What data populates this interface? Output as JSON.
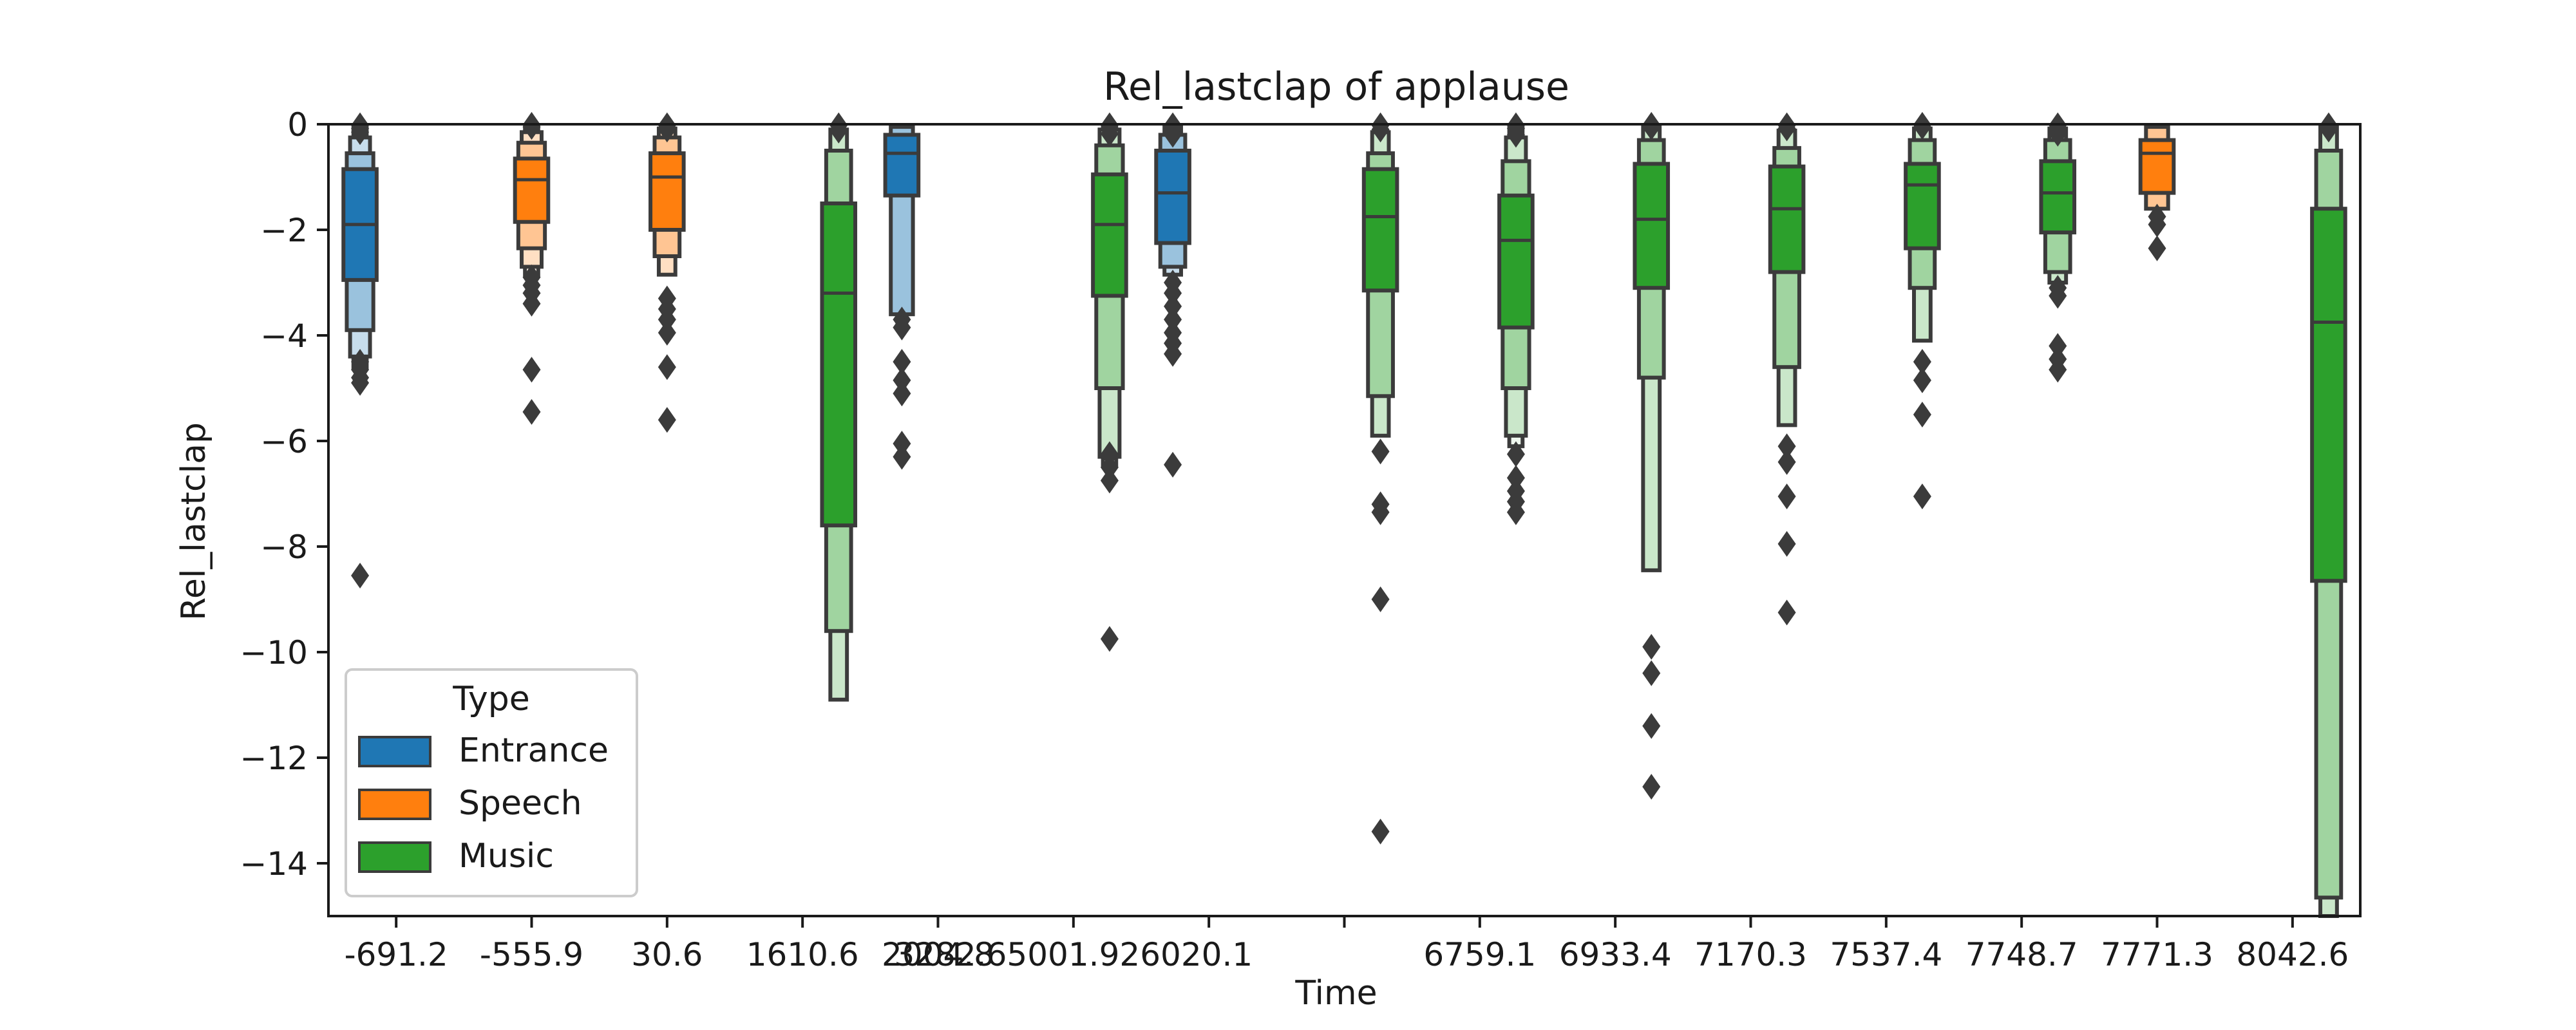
{
  "chart_data": {
    "type": "boxen",
    "title": "Rel_lastclap of applause",
    "xlabel": "Time",
    "ylabel": "Rel_lastclap",
    "ylim": [
      -15,
      0
    ],
    "yticks": [
      0,
      -2,
      -4,
      -6,
      -8,
      -10,
      -12,
      -14
    ],
    "ytick_labels": [
      "0",
      "−2",
      "−4",
      "−6",
      "−8",
      "−10",
      "−12",
      "−14"
    ],
    "categories": [
      "-691.2",
      "-555.9",
      "30.6",
      "1610.6",
      "2004.8",
      "3282.6",
      "5001.9",
      "26020.1",
      "6759.1",
      "6933.4",
      "7170.3",
      "7537.4",
      "7748.7",
      "7771.3",
      "8042.6"
    ],
    "tick_labels": [
      "-691.2",
      "-555.9",
      "30.6",
      "1610.6",
      "2004.8",
      "3282.65001.926020.1",
      "",
      "",
      "6759.1",
      "6933.4",
      "7170.3",
      "7537.4",
      "7748.7",
      "7771.3",
      "8042.6"
    ],
    "hue_order": [
      "Entrance",
      "Speech",
      "Music"
    ],
    "colors": {
      "Entrance": "#1f77b4",
      "Speech": "#ff7f0e",
      "Music": "#2ca02c",
      "edge": "#3b3b3b"
    },
    "legend": {
      "title": "Type",
      "placement": "lower-left",
      "entries": [
        {
          "label": "Entrance",
          "color": "#1f77b4"
        },
        {
          "label": "Speech",
          "color": "#ff7f0e"
        },
        {
          "label": "Music",
          "color": "#2ca02c"
        }
      ]
    },
    "groups": [
      {
        "category": "-691.2",
        "type": "Entrance",
        "median": -1.9,
        "boxes": [
          [
            -0.85,
            -2.95
          ],
          [
            -0.55,
            -3.9
          ],
          [
            -0.25,
            -4.4
          ],
          [
            -0.05,
            -4.6
          ]
        ],
        "outliers": [
          -4.5,
          -4.65,
          -4.8,
          -4.9,
          -8.55
        ],
        "top_outliers": [
          -0.02,
          -0.08,
          -0.15
        ]
      },
      {
        "category": "-555.9",
        "type": "Speech",
        "median": -1.05,
        "boxes": [
          [
            -0.65,
            -1.85
          ],
          [
            -0.35,
            -2.35
          ],
          [
            -0.15,
            -2.7
          ],
          [
            -0.03,
            -2.85
          ]
        ],
        "outliers": [
          -2.9,
          -3.05,
          -3.2,
          -3.4,
          -4.65,
          -5.45
        ],
        "top_outliers": [
          -0.01,
          -0.05
        ]
      },
      {
        "category": "30.6",
        "type": "Speech",
        "median": -1.0,
        "boxes": [
          [
            -0.55,
            -2.0
          ],
          [
            -0.25,
            -2.5
          ],
          [
            -0.08,
            -2.85
          ]
        ],
        "outliers": [
          -3.3,
          -3.5,
          -3.7,
          -3.95,
          -4.6,
          -5.6
        ],
        "top_outliers": [
          -0.02,
          -0.1
        ]
      },
      {
        "category": "1610.6",
        "type": "Music",
        "median": -3.2,
        "boxes": [
          [
            -1.5,
            -7.6
          ],
          [
            -0.5,
            -9.6
          ],
          [
            -0.1,
            -10.9
          ]
        ],
        "outliers": [],
        "top_outliers": [
          -0.02,
          -0.12
        ]
      },
      {
        "category": "2004.8",
        "type": "Entrance",
        "median": -0.55,
        "boxes": [
          [
            -0.2,
            -1.35
          ],
          [
            -0.05,
            -3.6
          ]
        ],
        "outliers": [
          -3.7,
          -3.85,
          -4.5,
          -4.85,
          -5.1,
          -6.05,
          -6.3
        ],
        "top_outliers": []
      },
      {
        "category": "3282.6",
        "type": "Music",
        "median": -1.9,
        "boxes": [
          [
            -0.95,
            -3.25
          ],
          [
            -0.4,
            -5.0
          ],
          [
            -0.1,
            -6.3
          ],
          [
            -0.03,
            -6.45
          ]
        ],
        "outliers": [
          -6.25,
          -6.5,
          -6.75,
          -9.75
        ],
        "top_outliers": [
          -0.02,
          -0.08,
          -0.18
        ]
      },
      {
        "category": "5001.9",
        "type": "Entrance",
        "median": -1.3,
        "boxes": [
          [
            -0.5,
            -2.25
          ],
          [
            -0.2,
            -2.7
          ],
          [
            -0.05,
            -2.85
          ]
        ],
        "outliers": [
          -3.0,
          -3.2,
          -3.45,
          -3.7,
          -3.95,
          -4.15,
          -4.35,
          -6.45
        ],
        "top_outliers": [
          -0.02,
          -0.08,
          -0.2
        ]
      },
      {
        "category": "26020.1",
        "type": "Music",
        "median": -1.75,
        "boxes": [
          [
            -0.85,
            -3.15
          ],
          [
            -0.55,
            -5.15
          ],
          [
            -0.15,
            -5.9
          ]
        ],
        "outliers": [
          -6.2,
          -7.2,
          -7.35,
          -9.0,
          -13.4
        ],
        "top_outliers": [
          -0.02,
          -0.1
        ]
      },
      {
        "category": "6759.1",
        "type": "Music",
        "median": -2.2,
        "boxes": [
          [
            -1.35,
            -3.85
          ],
          [
            -0.7,
            -5.0
          ],
          [
            -0.25,
            -5.9
          ],
          [
            -0.05,
            -6.1
          ]
        ],
        "outliers": [
          -6.25,
          -6.7,
          -6.95,
          -7.15,
          -7.35
        ],
        "top_outliers": [
          -0.02,
          -0.08,
          -0.2
        ]
      },
      {
        "category": "6933.4",
        "type": "Music",
        "median": -1.8,
        "boxes": [
          [
            -0.75,
            -3.1
          ],
          [
            -0.3,
            -4.8
          ],
          [
            -0.05,
            -8.45
          ]
        ],
        "outliers": [
          -9.9,
          -10.4,
          -11.4,
          -12.55
        ],
        "top_outliers": [
          -0.01,
          -0.06
        ]
      },
      {
        "category": "7170.3",
        "type": "Music",
        "median": -1.6,
        "boxes": [
          [
            -0.8,
            -2.8
          ],
          [
            -0.45,
            -4.6
          ],
          [
            -0.12,
            -5.7
          ]
        ],
        "outliers": [
          -6.1,
          -6.4,
          -7.05,
          -7.95,
          -9.25
        ],
        "top_outliers": [
          -0.02,
          -0.08
        ]
      },
      {
        "category": "7537.4",
        "type": "Music",
        "median": -1.15,
        "boxes": [
          [
            -0.75,
            -2.35
          ],
          [
            -0.3,
            -3.1
          ],
          [
            -0.08,
            -4.1
          ]
        ],
        "outliers": [
          -4.5,
          -4.85,
          -5.5,
          -7.05
        ],
        "top_outliers": [
          -0.01,
          -0.05
        ]
      },
      {
        "category": "7748.7",
        "type": "Music",
        "median": -1.3,
        "boxes": [
          [
            -0.7,
            -2.05
          ],
          [
            -0.3,
            -2.8
          ],
          [
            -0.08,
            -3.0
          ]
        ],
        "outliers": [
          -3.1,
          -3.25,
          -4.2,
          -4.45,
          -4.65
        ],
        "top_outliers": [
          -0.02,
          -0.08,
          -0.18
        ]
      },
      {
        "category": "7771.3",
        "type": "Speech",
        "median": -0.55,
        "boxes": [
          [
            -0.3,
            -1.3
          ],
          [
            -0.05,
            -1.6
          ]
        ],
        "outliers": [
          -1.75,
          -1.9,
          -2.35
        ],
        "top_outliers": []
      },
      {
        "category": "8042.6",
        "type": "Music",
        "median": -3.75,
        "boxes": [
          [
            -1.6,
            -8.65
          ],
          [
            -0.5,
            -14.65
          ],
          [
            -0.05,
            -15.0
          ]
        ],
        "outliers": [],
        "top_outliers": [
          -0.02,
          -0.1
        ]
      }
    ]
  }
}
